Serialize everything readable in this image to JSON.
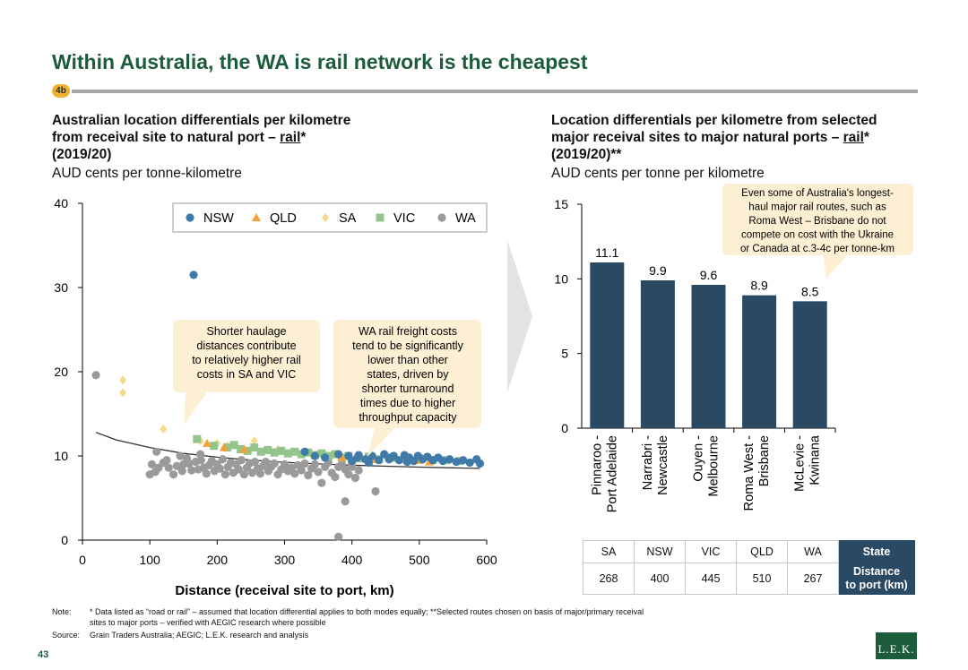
{
  "page": {
    "title": "Within Australia, the WA is rail network is the cheapest",
    "badge": "4b",
    "page_number": "43",
    "logo": "L.E.K."
  },
  "left_chart": {
    "title_line1": "Australian location differentials per kilometre",
    "title_line2_pre": "from receival site to natural port – ",
    "title_line2_u": "rail",
    "title_line2_post": "*",
    "title_line3": "(2019/20)",
    "unit": "AUD cents per tonne-kilometre",
    "annotation_left": [
      "Shorter haulage",
      "distances contribute",
      "to relatively higher rail",
      "costs in SA and VIC"
    ],
    "annotation_right": [
      "WA rail freight costs",
      "tend to be significantly",
      "lower than other",
      "states, driven by",
      "shorter turnaround",
      "times due to higher",
      "throughput capacity"
    ]
  },
  "right_chart": {
    "title_line1": "Location differentials per kilometre from selected",
    "title_line2_pre": "major receival sites to major natural ports – ",
    "title_line2_u": "rail",
    "title_line2_post": "*",
    "title_line3": "(2019/20)**",
    "unit": "AUD cents per tonne per kilometre",
    "callout": [
      "Even some of Australia's longest-",
      "haul major rail routes, such as",
      "Roma West – Brisbane do not",
      "compete on cost with the Ukraine",
      "or Canada at c.3-4c per tonne-km"
    ]
  },
  "table": {
    "states": [
      "SA",
      "NSW",
      "VIC",
      "QLD",
      "WA"
    ],
    "distances": [
      "268",
      "400",
      "445",
      "510",
      "267"
    ],
    "header_state": "State",
    "header_distance_line1": "Distance",
    "header_distance_line2": "to port (km)"
  },
  "notes": {
    "note_label": "Note:",
    "note_line1": "* Data listed as “road or rail” – assumed that location differential applies to both modes equally; **Selected routes chosen on basis of major/primary receival",
    "note_line2": "sites to major ports – verified with AEGIC research where possible",
    "source_label": "Source:",
    "source_text": "Grain Traders Australia; AEGIC; L.E.K. research and analysis"
  },
  "colors": {
    "NSW": "#3f7aa8",
    "QLD": "#f2a23b",
    "SA": "#f5d98a",
    "VIC": "#93c48b",
    "WA": "#9a9a9a",
    "bar": "#2a4a63",
    "callout_bg": "#fcefd4",
    "title_green": "#1c5c3c"
  },
  "chart_data": [
    {
      "type": "scatter",
      "xlabel": "Distance (receival site to port, km)",
      "ylabel": "",
      "xlim": [
        0,
        600
      ],
      "ylim": [
        0,
        40
      ],
      "xticks": [
        0,
        100,
        200,
        300,
        400,
        500,
        600
      ],
      "yticks": [
        0,
        10,
        20,
        30,
        40
      ],
      "legend_position": "top",
      "series": [
        {
          "name": "NSW",
          "marker": "circle",
          "points": [
            [
              165,
              31.5
            ],
            [
              330,
              10.5
            ],
            [
              345,
              10
            ],
            [
              360,
              9.8
            ],
            [
              380,
              10.2
            ],
            [
              395,
              10
            ],
            [
              400,
              9.4
            ],
            [
              410,
              10.1
            ],
            [
              420,
              9.6
            ],
            [
              430,
              10
            ],
            [
              440,
              9.5
            ],
            [
              448,
              10.2
            ],
            [
              455,
              9.6
            ],
            [
              462,
              10
            ],
            [
              470,
              9.5
            ],
            [
              478,
              10.1
            ],
            [
              485,
              9.8
            ],
            [
              492,
              9.4
            ],
            [
              498,
              10
            ],
            [
              505,
              9.6
            ],
            [
              512,
              9.9
            ],
            [
              520,
              9.5
            ],
            [
              528,
              9.8
            ],
            [
              535,
              9.4
            ],
            [
              545,
              9.6
            ],
            [
              555,
              9.3
            ],
            [
              565,
              9.5
            ],
            [
              575,
              9.2
            ],
            [
              585,
              9.6
            ],
            [
              590,
              9.1
            ],
            [
              408,
              9.8
            ],
            [
              425,
              9.2
            ],
            [
              458,
              9.8
            ],
            [
              482,
              9.3
            ]
          ]
        },
        {
          "name": "QLD",
          "marker": "triangle",
          "points": [
            [
              185,
              11.5
            ],
            [
              210,
              11.0
            ],
            [
              240,
              10.8
            ],
            [
              385,
              9.8
            ],
            [
              400,
              9.5
            ],
            [
              430,
              9.6
            ],
            [
              500,
              9.5
            ],
            [
              515,
              9.3
            ]
          ]
        },
        {
          "name": "SA",
          "marker": "diamond",
          "points": [
            [
              60,
              19
            ],
            [
              60,
              17.5
            ],
            [
              120,
              13.2
            ],
            [
              175,
              11.8
            ],
            [
              200,
              11.5
            ],
            [
              215,
              11.2
            ],
            [
              255,
              11.8
            ],
            [
              290,
              10.8
            ],
            [
              310,
              10.5
            ],
            [
              340,
              10.2
            ],
            [
              370,
              10.0
            ],
            [
              420,
              9.6
            ]
          ]
        },
        {
          "name": "VIC",
          "marker": "square",
          "points": [
            [
              170,
              12.0
            ],
            [
              195,
              11.2
            ],
            [
              215,
              11.0
            ],
            [
              225,
              11.3
            ],
            [
              235,
              10.8
            ],
            [
              245,
              10.6
            ],
            [
              255,
              11.0
            ],
            [
              265,
              10.5
            ],
            [
              275,
              10.7
            ],
            [
              285,
              10.4
            ],
            [
              295,
              10.6
            ],
            [
              305,
              10.3
            ],
            [
              315,
              10.5
            ],
            [
              325,
              10.2
            ],
            [
              335,
              10.4
            ],
            [
              345,
              10.1
            ],
            [
              355,
              10.3
            ],
            [
              365,
              10.0
            ],
            [
              375,
              10.2
            ],
            [
              385,
              9.8
            ],
            [
              395,
              10.0
            ],
            [
              410,
              9.7
            ],
            [
              425,
              9.9
            ],
            [
              440,
              9.6
            ],
            [
              460,
              9.8
            ],
            [
              480,
              9.6
            ],
            [
              500,
              9.7
            ],
            [
              520,
              9.5
            ],
            [
              540,
              9.5
            ],
            [
              560,
              9.4
            ]
          ]
        },
        {
          "name": "WA",
          "marker": "circle",
          "points": [
            [
              20,
              19.6
            ],
            [
              100,
              7.8
            ],
            [
              103,
              9
            ],
            [
              108,
              8.1
            ],
            [
              113,
              8.6
            ],
            [
              120,
              9.2
            ],
            [
              125,
              9.5
            ],
            [
              128,
              8.6
            ],
            [
              135,
              7.8
            ],
            [
              140,
              8.8
            ],
            [
              148,
              8.2
            ],
            [
              150,
              9.0
            ],
            [
              155,
              9.7
            ],
            [
              158,
              9.1
            ],
            [
              162,
              8.3
            ],
            [
              168,
              9.3
            ],
            [
              172,
              8.4
            ],
            [
              176,
              9.5
            ],
            [
              180,
              8.6
            ],
            [
              184,
              7.9
            ],
            [
              188,
              8.9
            ],
            [
              192,
              9.4
            ],
            [
              196,
              8.2
            ],
            [
              200,
              9.0
            ],
            [
              204,
              8.5
            ],
            [
              208,
              9.6
            ],
            [
              212,
              7.8
            ],
            [
              216,
              8.7
            ],
            [
              220,
              9.2
            ],
            [
              224,
              8.0
            ],
            [
              228,
              9.0
            ],
            [
              232,
              8.4
            ],
            [
              236,
              9.5
            ],
            [
              240,
              7.8
            ],
            [
              244,
              8.6
            ],
            [
              248,
              9.1
            ],
            [
              252,
              8.0
            ],
            [
              256,
              9.3
            ],
            [
              260,
              8.5
            ],
            [
              264,
              7.9
            ],
            [
              268,
              8.8
            ],
            [
              272,
              9.3
            ],
            [
              276,
              8.2
            ],
            [
              280,
              8.7
            ],
            [
              285,
              9.1
            ],
            [
              290,
              7.8
            ],
            [
              295,
              8.4
            ],
            [
              300,
              9.0
            ],
            [
              305,
              8.2
            ],
            [
              310,
              8.6
            ],
            [
              315,
              7.9
            ],
            [
              320,
              8.9
            ],
            [
              325,
              8.3
            ],
            [
              330,
              9.1
            ],
            [
              335,
              7.7
            ],
            [
              340,
              8.5
            ],
            [
              345,
              9.0
            ],
            [
              350,
              8.1
            ],
            [
              355,
              6.8
            ],
            [
              360,
              8.7
            ],
            [
              365,
              9.2
            ],
            [
              370,
              8.0
            ],
            [
              375,
              7.5
            ],
            [
              380,
              8.7
            ],
            [
              385,
              9.0
            ],
            [
              390,
              8.4
            ],
            [
              395,
              7.8
            ],
            [
              400,
              8.7
            ],
            [
              405,
              7.4
            ],
            [
              410,
              8.3
            ],
            [
              390,
              4.6
            ],
            [
              435,
              5.8
            ],
            [
              380,
              0.4
            ],
            [
              110,
              10.5
            ],
            [
              145,
              10.0
            ],
            [
              175,
              10.2
            ]
          ]
        }
      ],
      "trendline": [
        [
          20,
          12.8
        ],
        [
          50,
          11.9
        ],
        [
          100,
          11.0
        ],
        [
          150,
          10.3
        ],
        [
          200,
          9.85
        ],
        [
          250,
          9.5
        ],
        [
          300,
          9.25
        ],
        [
          350,
          9.05
        ],
        [
          400,
          8.9
        ],
        [
          450,
          8.78
        ],
        [
          500,
          8.67
        ],
        [
          550,
          8.58
        ],
        [
          590,
          8.52
        ]
      ],
      "annotations": [
        "Shorter haulage distances contribute to relatively higher rail costs in SA and VIC",
        "WA rail freight costs tend to be significantly lower than other states, driven by shorter turnaround times due to higher throughput capacity"
      ]
    },
    {
      "type": "bar",
      "categories": [
        [
          "Pinnaroo -",
          "Port Adelaide"
        ],
        [
          "Narrabri -",
          "Newcastle"
        ],
        [
          "Ouyen -",
          "Melbourne"
        ],
        [
          "Roma West -",
          "Brisbane"
        ],
        [
          "McLevie -",
          "Kwinana"
        ]
      ],
      "values": [
        11.1,
        9.9,
        9.6,
        8.9,
        8.5
      ],
      "value_labels": [
        "11.1",
        "9.9",
        "9.6",
        "8.9",
        "8.5"
      ],
      "ylim": [
        0,
        15
      ],
      "yticks": [
        0,
        5,
        10,
        15
      ]
    }
  ]
}
